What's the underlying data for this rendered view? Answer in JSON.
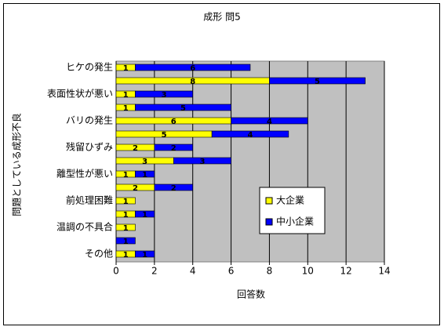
{
  "chart_data": {
    "type": "bar",
    "orientation": "horizontal",
    "stacked": true,
    "title": "成形 問5",
    "x_label": "回答数",
    "y_label": "問題としている成形不良",
    "categories": [
      "ヒケの発生",
      null,
      "表面性状が悪い",
      null,
      "バリの発生",
      null,
      "残留ひずみ",
      null,
      "離型性が悪い",
      null,
      "前処理困難",
      null,
      "温調の不具合",
      null,
      "その他"
    ],
    "series": [
      {
        "name": "大企業",
        "color": "#ffff00",
        "values": [
          1,
          8,
          1,
          1,
          6,
          5,
          2,
          3,
          1,
          2,
          1,
          1,
          1,
          0,
          1
        ]
      },
      {
        "name": "中小企業",
        "color": "#0000ff",
        "values": [
          6,
          5,
          3,
          5,
          4,
          4,
          2,
          3,
          1,
          2,
          0,
          1,
          0,
          1,
          1
        ]
      }
    ],
    "xlim": [
      0,
      14
    ],
    "xticks": [
      0,
      2,
      4,
      6,
      8,
      10,
      12,
      14
    ],
    "grid": true,
    "legend": "right"
  }
}
